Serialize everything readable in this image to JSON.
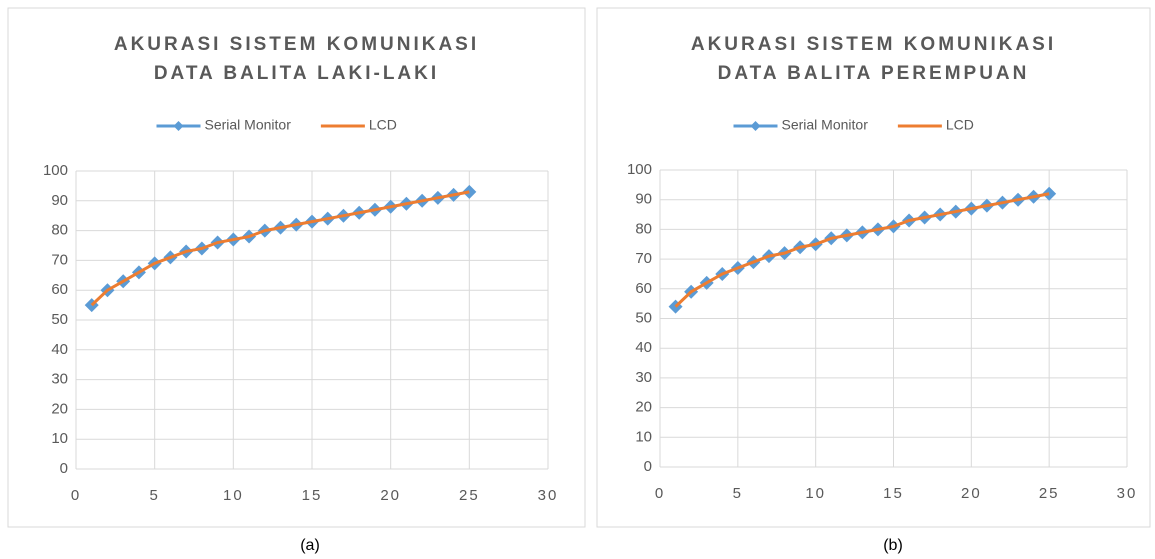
{
  "chart_data": [
    {
      "type": "line",
      "title": [
        "AKURASI SISTEM KOMUNIKASI",
        "DATA BALITA LAKI-LAKI"
      ],
      "caption": "(a)",
      "x": [
        1,
        2,
        3,
        4,
        5,
        6,
        7,
        8,
        9,
        10,
        11,
        12,
        13,
        14,
        15,
        16,
        17,
        18,
        19,
        20,
        21,
        22,
        23,
        24,
        25
      ],
      "series": [
        {
          "name": "Serial Monitor",
          "color": "#5b9bd5",
          "marker": "diamond",
          "values": [
            55,
            60,
            63,
            66,
            69,
            71,
            73,
            74,
            76,
            77,
            78,
            80,
            81,
            82,
            83,
            84,
            85,
            86,
            87,
            88,
            89,
            90,
            91,
            92,
            93
          ]
        },
        {
          "name": "LCD",
          "color": "#ed7d31",
          "marker": "none",
          "values": [
            55,
            60,
            63,
            66,
            69,
            71,
            73,
            74,
            76,
            77,
            78,
            80,
            81,
            82,
            83,
            84,
            85,
            86,
            87,
            88,
            89,
            90,
            91,
            92,
            93
          ]
        }
      ],
      "xlim": [
        0,
        30
      ],
      "xticks": [
        0,
        5,
        10,
        15,
        20,
        25,
        30
      ],
      "ylim": [
        0,
        100
      ],
      "yticks": [
        0,
        10,
        20,
        30,
        40,
        50,
        60,
        70,
        80,
        90,
        100
      ],
      "grid": true,
      "legend": "top"
    },
    {
      "type": "line",
      "title": [
        "AKURASI SISTEM KOMUNIKASI",
        "DATA BALITA PEREMPUAN"
      ],
      "caption": "(b)",
      "x": [
        1,
        2,
        3,
        4,
        5,
        6,
        7,
        8,
        9,
        10,
        11,
        12,
        13,
        14,
        15,
        16,
        17,
        18,
        19,
        20,
        21,
        22,
        23,
        24,
        25
      ],
      "series": [
        {
          "name": "Serial Monitor",
          "color": "#5b9bd5",
          "marker": "diamond",
          "values": [
            54,
            59,
            62,
            65,
            67,
            69,
            71,
            72,
            74,
            75,
            77,
            78,
            79,
            80,
            81,
            83,
            84,
            85,
            86,
            87,
            88,
            89,
            90,
            91,
            92
          ]
        },
        {
          "name": "LCD",
          "color": "#ed7d31",
          "marker": "none",
          "values": [
            54,
            59,
            62,
            65,
            67,
            69,
            71,
            72,
            74,
            75,
            77,
            78,
            79,
            80,
            81,
            83,
            84,
            85,
            86,
            87,
            88,
            89,
            90,
            91,
            92
          ]
        }
      ],
      "xlim": [
        0,
        30
      ],
      "xticks": [
        0,
        5,
        10,
        15,
        20,
        25,
        30
      ],
      "ylim": [
        0,
        100
      ],
      "yticks": [
        0,
        10,
        20,
        30,
        40,
        50,
        60,
        70,
        80,
        90,
        100
      ],
      "grid": true,
      "legend": "top"
    }
  ]
}
